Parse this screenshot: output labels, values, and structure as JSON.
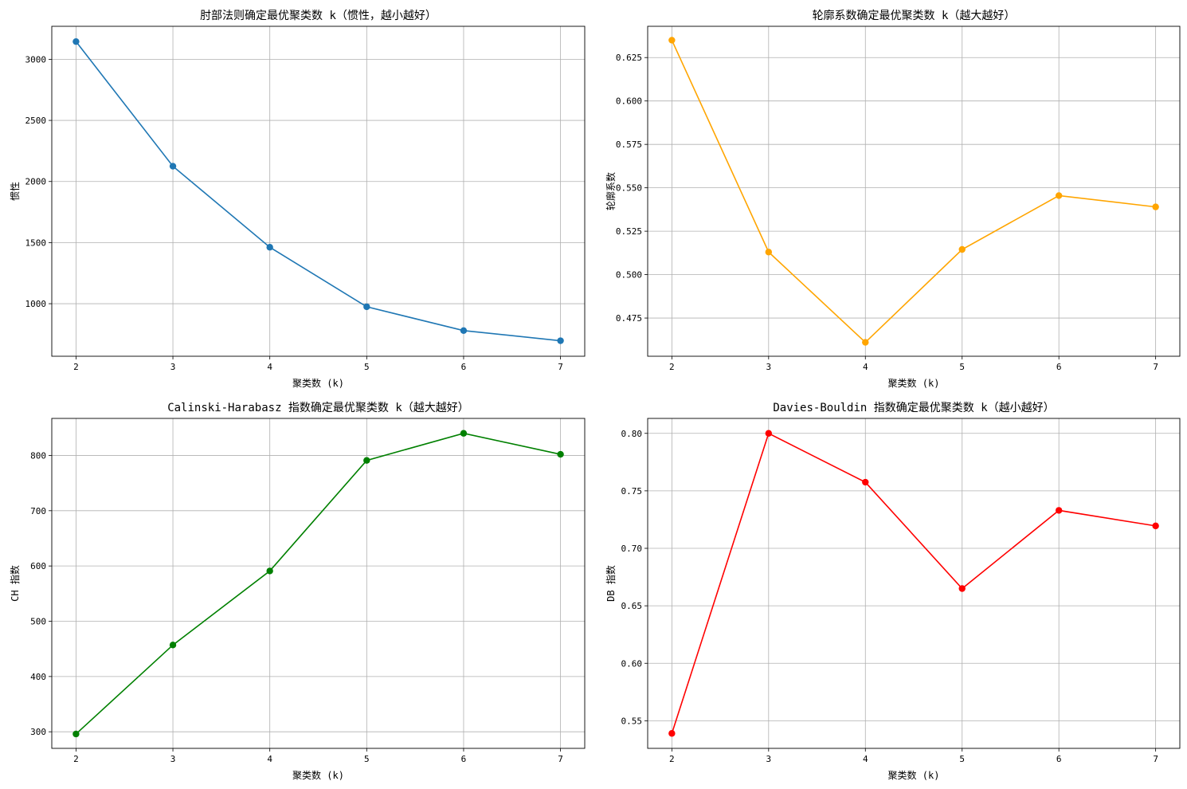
{
  "chart_data": [
    {
      "type": "line",
      "title": "肘部法则确定最优聚类数 k（惯性，越小越好）",
      "xlabel": "聚类数 (k)",
      "ylabel": "惯性",
      "color": "#1f77b4",
      "x": [
        2,
        3,
        4,
        5,
        6,
        7
      ],
      "y": [
        3145,
        2125,
        1462,
        975,
        780,
        697
      ],
      "xlim": [
        1.75,
        7.25
      ],
      "ylim": [
        570,
        3270
      ],
      "xticks": [
        2,
        3,
        4,
        5,
        6,
        7
      ],
      "yticks": [
        1000,
        1500,
        2000,
        2500,
        3000
      ],
      "ytick_labels": [
        "1000",
        "1500",
        "2000",
        "2500",
        "3000"
      ],
      "grid": true
    },
    {
      "type": "line",
      "title": "轮廓系数确定最优聚类数 k（越大越好）",
      "xlabel": "聚类数 (k)",
      "ylabel": "轮廓系数",
      "color": "#ffa500",
      "x": [
        2,
        3,
        4,
        5,
        6,
        7
      ],
      "y": [
        0.635,
        0.513,
        0.461,
        0.5145,
        0.5455,
        0.539
      ],
      "xlim": [
        1.75,
        7.25
      ],
      "ylim": [
        0.453,
        0.643
      ],
      "xticks": [
        2,
        3,
        4,
        5,
        6,
        7
      ],
      "yticks": [
        0.475,
        0.5,
        0.525,
        0.55,
        0.575,
        0.6,
        0.625
      ],
      "ytick_labels": [
        "0.475",
        "0.500",
        "0.525",
        "0.550",
        "0.575",
        "0.600",
        "0.625"
      ],
      "grid": true
    },
    {
      "type": "line",
      "title": "Calinski-Harabasz 指数确定最优聚类数 k（越大越好）",
      "xlabel": "聚类数 (k)",
      "ylabel": "CH 指数",
      "color": "#008000",
      "x": [
        2,
        3,
        4,
        5,
        6,
        7
      ],
      "y": [
        296,
        457,
        591,
        791,
        840,
        802
      ],
      "xlim": [
        1.75,
        7.25
      ],
      "ylim": [
        270,
        867
      ],
      "xticks": [
        2,
        3,
        4,
        5,
        6,
        7
      ],
      "yticks": [
        300,
        400,
        500,
        600,
        700,
        800
      ],
      "ytick_labels": [
        "300",
        "400",
        "500",
        "600",
        "700",
        "800"
      ],
      "grid": true
    },
    {
      "type": "line",
      "title": "Davies-Bouldin 指数确定最优聚类数 k（越小越好）",
      "xlabel": "聚类数 (k)",
      "ylabel": "DB 指数",
      "color": "#ff0000",
      "x": [
        2,
        3,
        4,
        5,
        6,
        7
      ],
      "y": [
        0.539,
        0.8,
        0.7575,
        0.665,
        0.733,
        0.7195
      ],
      "xlim": [
        1.75,
        7.25
      ],
      "ylim": [
        0.526,
        0.813
      ],
      "xticks": [
        2,
        3,
        4,
        5,
        6,
        7
      ],
      "yticks": [
        0.55,
        0.6,
        0.65,
        0.7,
        0.75,
        0.8
      ],
      "ytick_labels": [
        "0.55",
        "0.60",
        "0.65",
        "0.70",
        "0.75",
        "0.80"
      ],
      "grid": true
    }
  ]
}
